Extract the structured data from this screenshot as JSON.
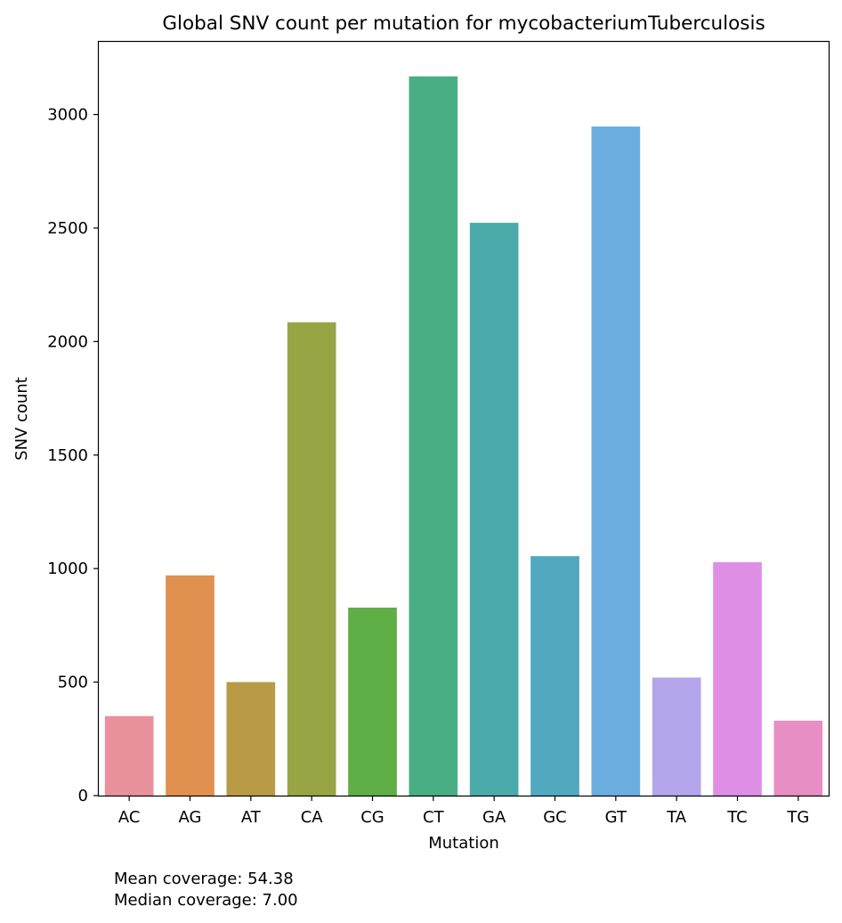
{
  "chart_data": {
    "type": "bar",
    "title": "Global SNV count per mutation for mycobacteriumTuberculosis",
    "xlabel": "Mutation",
    "ylabel": "SNV count",
    "categories": [
      "AC",
      "AG",
      "AT",
      "CA",
      "CG",
      "CT",
      "GA",
      "GC",
      "GT",
      "TA",
      "TC",
      "TG"
    ],
    "values": [
      350,
      970,
      500,
      2085,
      828,
      3168,
      2523,
      1055,
      2947,
      520,
      1028,
      330
    ],
    "colors": [
      "#e8919d",
      "#e0914f",
      "#b89a47",
      "#99a545",
      "#5fae46",
      "#4aae84",
      "#4babaa",
      "#51a9c0",
      "#6badde",
      "#b5a5ea",
      "#df8ee6",
      "#e78ec4"
    ],
    "ylim": [
      0,
      3320
    ],
    "yticks": [
      0,
      500,
      1000,
      1500,
      2000,
      2500,
      3000
    ],
    "grid": false,
    "legend": "none"
  },
  "footnote": {
    "mean": "Mean coverage: 54.38",
    "median": "Median coverage: 7.00"
  }
}
